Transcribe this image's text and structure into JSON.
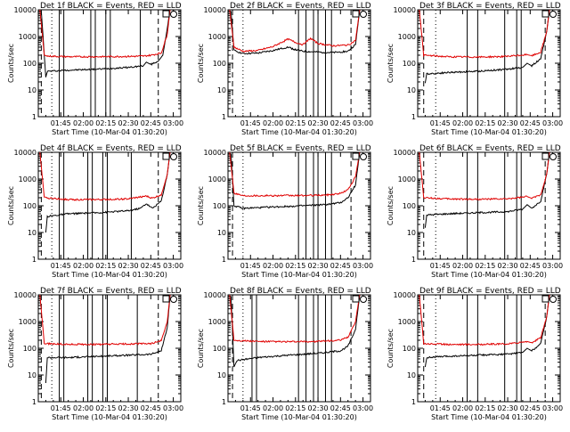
{
  "figure": {
    "x_axis_label": "Start Time (10-Mar-04 01:30:20)",
    "y_axis_label": "Counts/sec",
    "time_ticks": [
      "01:45",
      "02:00",
      "02:15",
      "02:30",
      "02:45",
      "03:00"
    ],
    "count_ticks": [
      "1",
      "10",
      "100",
      "1000",
      "10000"
    ]
  },
  "chart_data": [
    {
      "type": "line",
      "title": "Det 1f BLACK = Events, RED = LLD",
      "xlabel": "Start Time (10-Mar-04 01:30:20)",
      "ylabel": "Counts/sec",
      "x_unit": "minutes after 01:30",
      "xlim": [
        0,
        95
      ],
      "ylim": [
        1,
        10000
      ],
      "y_scale": "log",
      "series": [
        {
          "name": "Events",
          "color": "#000000",
          "points": [
            [
              2,
              9000
            ],
            [
              5,
              30
            ],
            [
              6,
              50
            ],
            [
              20,
              55
            ],
            [
              40,
              60
            ],
            [
              60,
              70
            ],
            [
              70,
              80
            ],
            [
              72,
              110
            ],
            [
              75,
              90
            ],
            [
              80,
              120
            ],
            [
              83,
              200
            ],
            [
              86,
              2000
            ],
            [
              88,
              12000
            ]
          ]
        },
        {
          "name": "LLD",
          "color": "#e00000",
          "points": [
            [
              1,
              11000
            ],
            [
              4,
              200
            ],
            [
              6,
              185
            ],
            [
              20,
              175
            ],
            [
              40,
              175
            ],
            [
              60,
              180
            ],
            [
              70,
              185
            ],
            [
              75,
              200
            ],
            [
              82,
              240
            ],
            [
              86,
              1200
            ],
            [
              88,
              12000
            ]
          ]
        }
      ]
    },
    {
      "type": "line",
      "title": "Det 2f BLACK = Events, RED = LLD",
      "xlabel": "Start Time (10-Mar-04 01:30:20)",
      "ylabel": "Counts/sec",
      "x_unit": "minutes after 01:30",
      "xlim": [
        0,
        95
      ],
      "ylim": [
        1,
        10000
      ],
      "y_scale": "log",
      "series": [
        {
          "name": "Events",
          "color": "#000000",
          "points": [
            [
              2,
              9000
            ],
            [
              4,
              300
            ],
            [
              10,
              230
            ],
            [
              20,
              240
            ],
            [
              30,
              300
            ],
            [
              40,
              400
            ],
            [
              45,
              320
            ],
            [
              50,
              280
            ],
            [
              60,
              260
            ],
            [
              70,
              250
            ],
            [
              80,
              280
            ],
            [
              85,
              500
            ],
            [
              88,
              12000
            ]
          ]
        },
        {
          "name": "LLD",
          "color": "#e00000",
          "points": [
            [
              1,
              11000
            ],
            [
              4,
              400
            ],
            [
              10,
              280
            ],
            [
              20,
              300
            ],
            [
              30,
              420
            ],
            [
              40,
              800
            ],
            [
              45,
              600
            ],
            [
              50,
              500
            ],
            [
              55,
              850
            ],
            [
              60,
              550
            ],
            [
              70,
              450
            ],
            [
              80,
              480
            ],
            [
              85,
              700
            ],
            [
              88,
              12000
            ]
          ]
        }
      ]
    },
    {
      "type": "line",
      "title": "Det 3f BLACK = Events, RED = LLD",
      "xlabel": "Start Time (10-Mar-04 01:30:20)",
      "ylabel": "Counts/sec",
      "x_unit": "minutes after 01:30",
      "xlim": [
        0,
        95
      ],
      "ylim": [
        1,
        10000
      ],
      "y_scale": "log",
      "series": [
        {
          "name": "Events",
          "color": "#000000",
          "points": [
            [
              5,
              18
            ],
            [
              6,
              40
            ],
            [
              20,
              45
            ],
            [
              40,
              50
            ],
            [
              60,
              60
            ],
            [
              70,
              70
            ],
            [
              73,
              100
            ],
            [
              76,
              80
            ],
            [
              82,
              150
            ],
            [
              86,
              1500
            ],
            [
              88,
              12000
            ]
          ]
        },
        {
          "name": "LLD",
          "color": "#e00000",
          "points": [
            [
              1,
              11000
            ],
            [
              4,
              200
            ],
            [
              20,
              175
            ],
            [
              40,
              170
            ],
            [
              60,
              180
            ],
            [
              73,
              210
            ],
            [
              76,
              190
            ],
            [
              82,
              260
            ],
            [
              86,
              1500
            ],
            [
              88,
              12000
            ]
          ]
        }
      ]
    },
    {
      "type": "line",
      "title": "Det 4f BLACK = Events, RED = LLD",
      "xlabel": "Start Time (10-Mar-04 01:30:20)",
      "ylabel": "Counts/sec",
      "x_unit": "minutes after 01:30",
      "xlim": [
        0,
        95
      ],
      "ylim": [
        1,
        10000
      ],
      "y_scale": "log",
      "series": [
        {
          "name": "Events",
          "color": "#000000",
          "points": [
            [
              5,
              10
            ],
            [
              6,
              40
            ],
            [
              20,
              50
            ],
            [
              40,
              55
            ],
            [
              60,
              65
            ],
            [
              68,
              80
            ],
            [
              72,
              120
            ],
            [
              76,
              80
            ],
            [
              82,
              150
            ],
            [
              86,
              1500
            ],
            [
              88,
              12000
            ]
          ]
        },
        {
          "name": "LLD",
          "color": "#e00000",
          "points": [
            [
              1,
              11000
            ],
            [
              4,
              200
            ],
            [
              20,
              170
            ],
            [
              40,
              170
            ],
            [
              60,
              180
            ],
            [
              72,
              230
            ],
            [
              76,
              190
            ],
            [
              82,
              260
            ],
            [
              86,
              1500
            ],
            [
              88,
              12000
            ]
          ]
        }
      ]
    },
    {
      "type": "line",
      "title": "Det 5f BLACK = Events, RED = LLD",
      "xlabel": "Start Time (10-Mar-04 01:30:20)",
      "ylabel": "Counts/sec",
      "x_unit": "minutes after 01:30",
      "xlim": [
        0,
        95
      ],
      "ylim": [
        1,
        10000
      ],
      "y_scale": "log",
      "series": [
        {
          "name": "Events",
          "color": "#000000",
          "points": [
            [
              2,
              9000
            ],
            [
              4,
              100
            ],
            [
              10,
              80
            ],
            [
              30,
              90
            ],
            [
              50,
              100
            ],
            [
              65,
              110
            ],
            [
              75,
              130
            ],
            [
              80,
              200
            ],
            [
              85,
              600
            ],
            [
              88,
              12000
            ]
          ]
        },
        {
          "name": "LLD",
          "color": "#e00000",
          "points": [
            [
              1,
              11000
            ],
            [
              4,
              300
            ],
            [
              10,
              240
            ],
            [
              30,
              240
            ],
            [
              50,
              240
            ],
            [
              65,
              250
            ],
            [
              75,
              290
            ],
            [
              80,
              400
            ],
            [
              85,
              1200
            ],
            [
              88,
              12000
            ]
          ]
        }
      ]
    },
    {
      "type": "line",
      "title": "Det 6f BLACK = Events, RED = LLD",
      "xlabel": "Start Time (10-Mar-04 01:30:20)",
      "ylabel": "Counts/sec",
      "x_unit": "minutes after 01:30",
      "xlim": [
        0,
        95
      ],
      "ylim": [
        1,
        10000
      ],
      "y_scale": "log",
      "series": [
        {
          "name": "Events",
          "color": "#000000",
          "points": [
            [
              5,
              15
            ],
            [
              6,
              45
            ],
            [
              20,
              50
            ],
            [
              40,
              55
            ],
            [
              60,
              60
            ],
            [
              70,
              75
            ],
            [
              73,
              110
            ],
            [
              76,
              80
            ],
            [
              82,
              150
            ],
            [
              86,
              1500
            ],
            [
              88,
              12000
            ]
          ]
        },
        {
          "name": "LLD",
          "color": "#e00000",
          "points": [
            [
              1,
              11000
            ],
            [
              4,
              200
            ],
            [
              20,
              180
            ],
            [
              40,
              175
            ],
            [
              60,
              180
            ],
            [
              73,
              220
            ],
            [
              76,
              190
            ],
            [
              82,
              260
            ],
            [
              86,
              1500
            ],
            [
              88,
              12000
            ]
          ]
        }
      ]
    },
    {
      "type": "line",
      "title": "Det 7f BLACK = Events, RED = LLD",
      "xlabel": "Start Time (10-Mar-04 01:30:20)",
      "ylabel": "Counts/sec",
      "x_unit": "minutes after 01:30",
      "xlim": [
        0,
        95
      ],
      "ylim": [
        1,
        10000
      ],
      "y_scale": "log",
      "series": [
        {
          "name": "Events",
          "color": "#000000",
          "points": [
            [
              5,
              5
            ],
            [
              6,
              45
            ],
            [
              20,
              45
            ],
            [
              40,
              50
            ],
            [
              60,
              55
            ],
            [
              75,
              60
            ],
            [
              82,
              80
            ],
            [
              86,
              600
            ],
            [
              88,
              12000
            ]
          ]
        },
        {
          "name": "LLD",
          "color": "#e00000",
          "points": [
            [
              1,
              11000
            ],
            [
              4,
              150
            ],
            [
              20,
              140
            ],
            [
              40,
              140
            ],
            [
              60,
              145
            ],
            [
              75,
              150
            ],
            [
              82,
              190
            ],
            [
              86,
              1000
            ],
            [
              88,
              12000
            ]
          ]
        }
      ]
    },
    {
      "type": "line",
      "title": "Det 8f BLACK = Events, RED = LLD",
      "xlabel": "Start Time (10-Mar-04 01:30:20)",
      "ylabel": "Counts/sec",
      "x_unit": "minutes after 01:30",
      "xlim": [
        0,
        95
      ],
      "ylim": [
        1,
        10000
      ],
      "y_scale": "log",
      "series": [
        {
          "name": "Events",
          "color": "#000000",
          "points": [
            [
              2,
              9000
            ],
            [
              4,
              20
            ],
            [
              6,
              35
            ],
            [
              20,
              45
            ],
            [
              40,
              55
            ],
            [
              60,
              65
            ],
            [
              75,
              80
            ],
            [
              80,
              120
            ],
            [
              85,
              500
            ],
            [
              88,
              12000
            ]
          ]
        },
        {
          "name": "LLD",
          "color": "#e00000",
          "points": [
            [
              1,
              11000
            ],
            [
              4,
              200
            ],
            [
              20,
              180
            ],
            [
              40,
              175
            ],
            [
              60,
              180
            ],
            [
              75,
              200
            ],
            [
              80,
              260
            ],
            [
              85,
              1000
            ],
            [
              88,
              12000
            ]
          ]
        }
      ]
    },
    {
      "type": "line",
      "title": "Det 9f BLACK = Events, RED = LLD",
      "xlabel": "Start Time (10-Mar-04 01:30:20)",
      "ylabel": "Counts/sec",
      "x_unit": "minutes after 01:30",
      "xlim": [
        0,
        95
      ],
      "ylim": [
        1,
        10000
      ],
      "y_scale": "log",
      "series": [
        {
          "name": "Events",
          "color": "#000000",
          "points": [
            [
              5,
              20
            ],
            [
              6,
              45
            ],
            [
              20,
              50
            ],
            [
              40,
              55
            ],
            [
              60,
              60
            ],
            [
              70,
              70
            ],
            [
              73,
              100
            ],
            [
              76,
              80
            ],
            [
              82,
              150
            ],
            [
              86,
              1500
            ],
            [
              88,
              12000
            ]
          ]
        },
        {
          "name": "LLD",
          "color": "#e00000",
          "points": [
            [
              1,
              11000
            ],
            [
              4,
              150
            ],
            [
              20,
              140
            ],
            [
              40,
              140
            ],
            [
              60,
              145
            ],
            [
              73,
              180
            ],
            [
              76,
              160
            ],
            [
              82,
              250
            ],
            [
              86,
              1500
            ],
            [
              88,
              12000
            ]
          ]
        }
      ]
    }
  ]
}
